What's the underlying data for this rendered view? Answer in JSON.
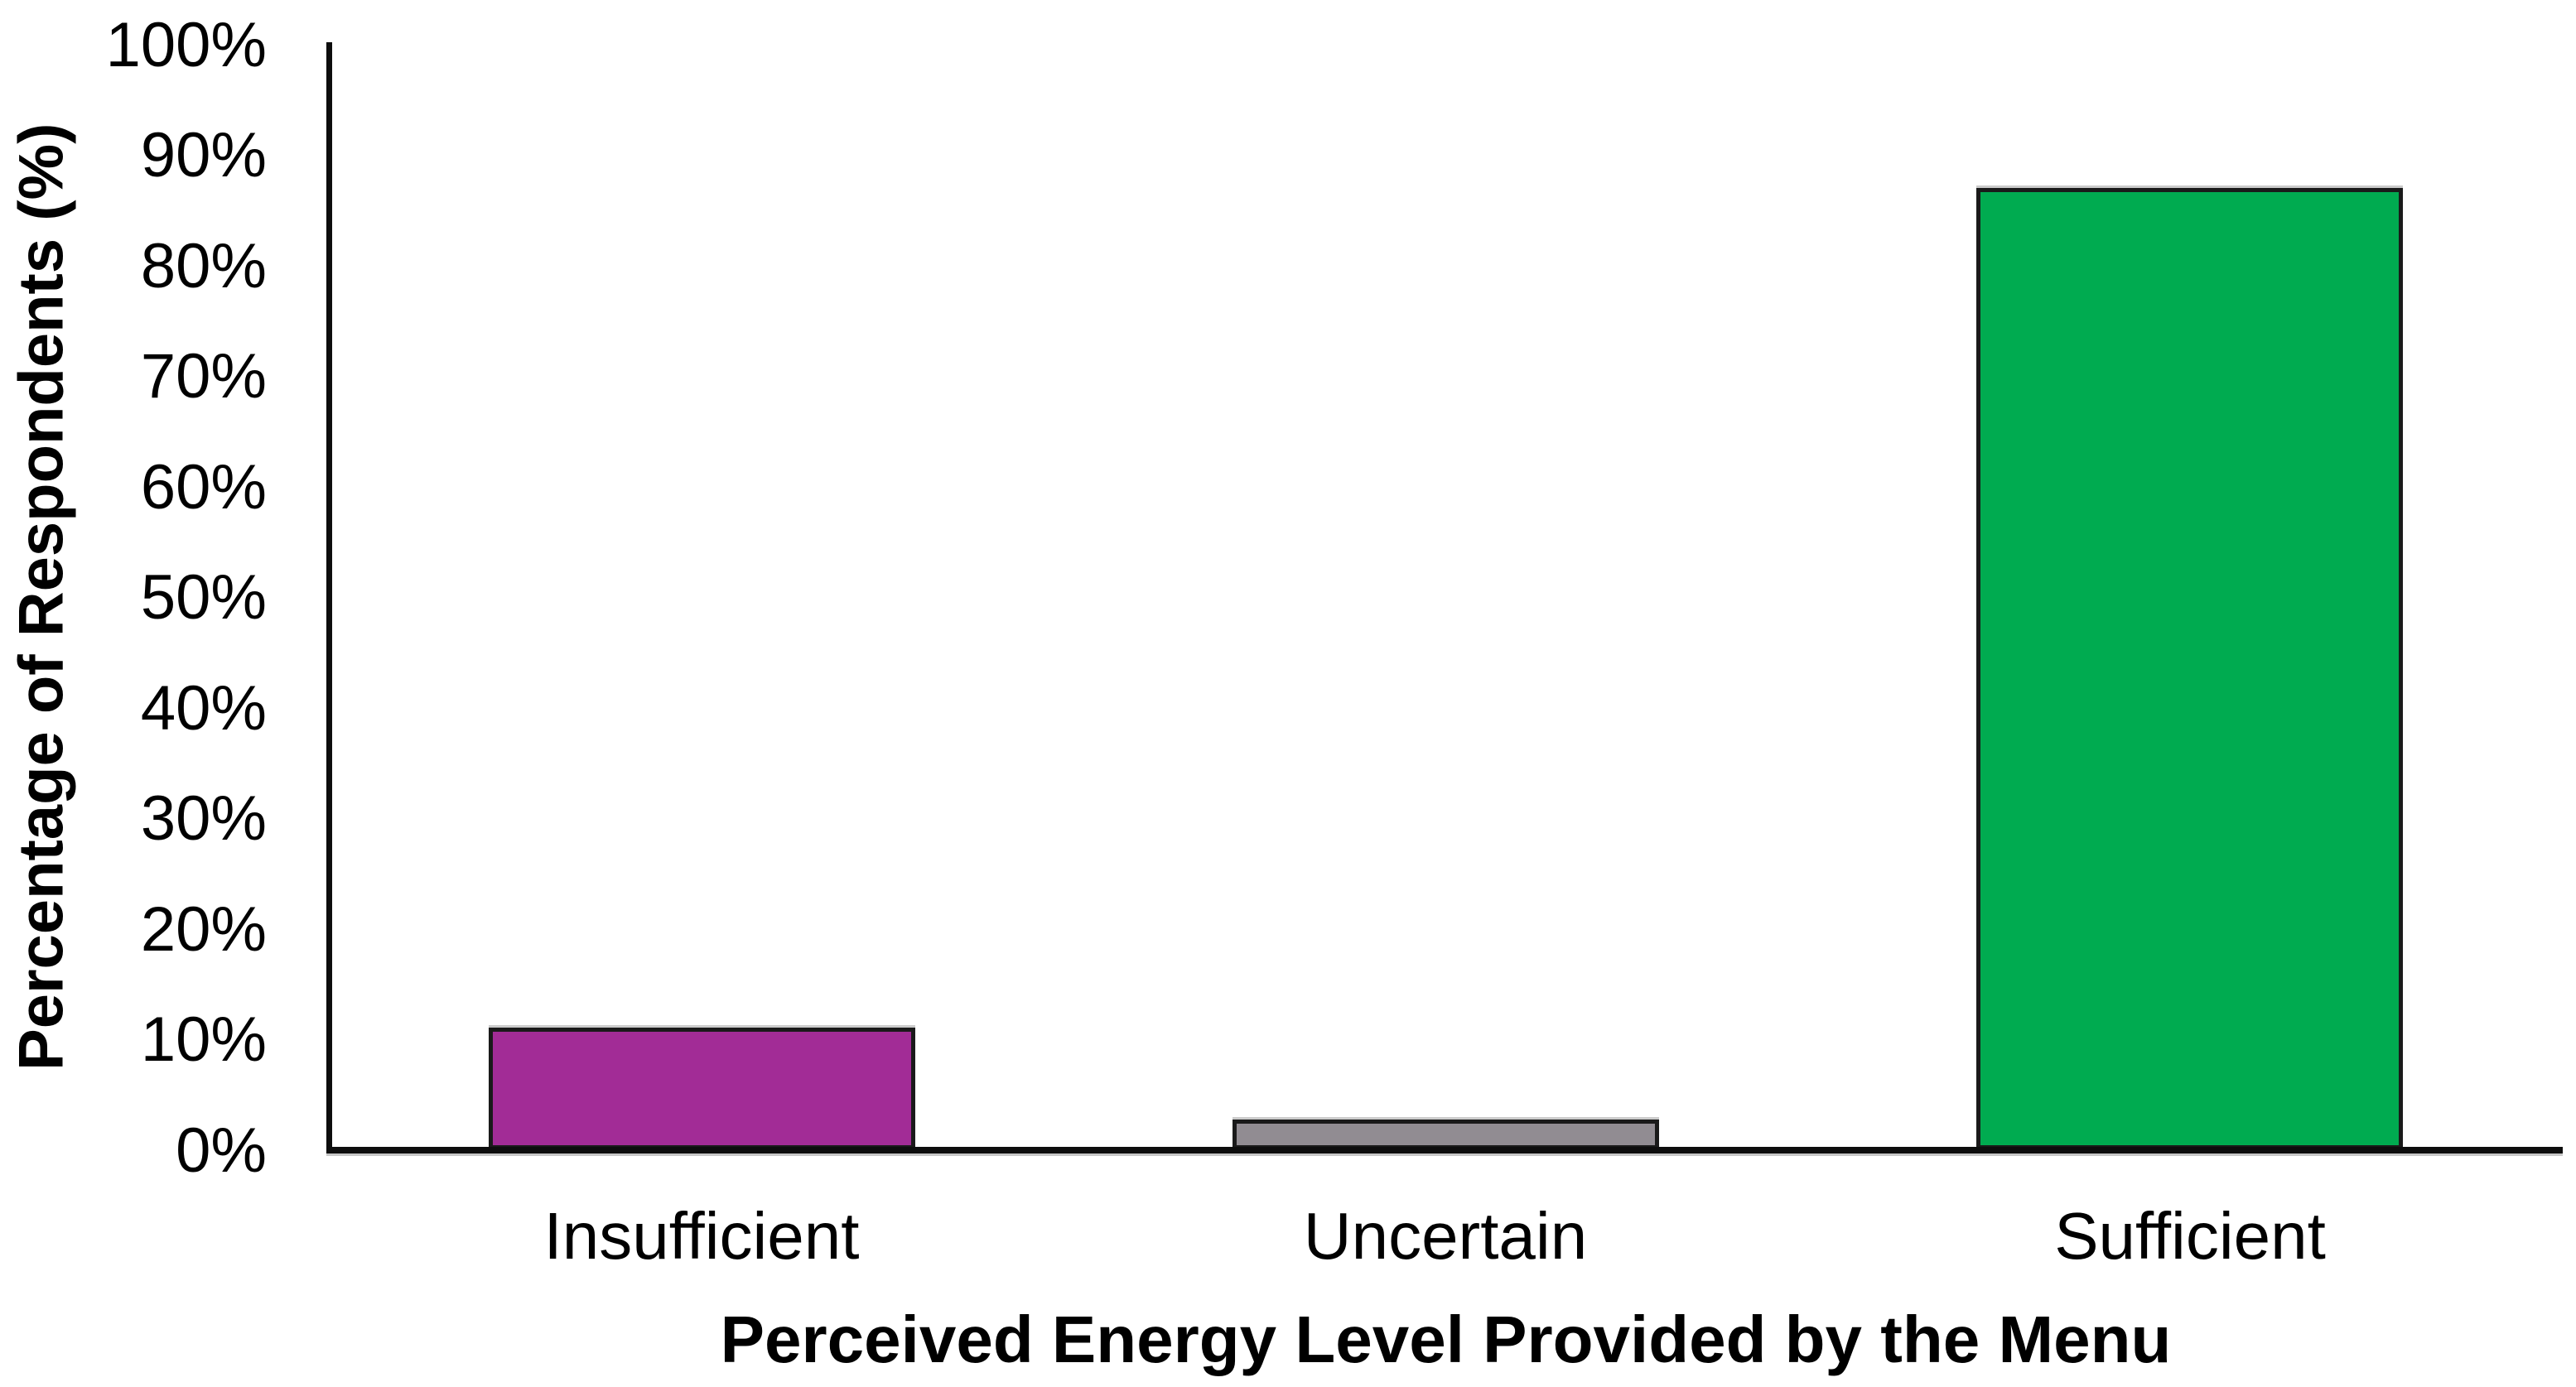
{
  "chart_data": {
    "type": "bar",
    "title": "",
    "categories": [
      "Insufficient",
      "Uncertain",
      "Sufficient"
    ],
    "values": [
      11,
      2.7,
      87
    ],
    "bar_colors": [
      "#A22C96",
      "#918C92",
      "#00AB50"
    ],
    "bar_border_color": "#1a1a1a",
    "xlabel": "Perceived Energy Level Provided by the Menu",
    "ylabel": "Percentage of Respondents (%)",
    "ylim": [
      0,
      100
    ],
    "y_tick_step": 10,
    "y_tick_labels": [
      "100%",
      "90%",
      "80%",
      "70%",
      "60%",
      "50%",
      "40%",
      "30%",
      "20%",
      "10%",
      "0%"
    ],
    "grid": "off",
    "legend": "none",
    "axis_color": "#0d0d0d",
    "background_color": "#ffffff"
  }
}
